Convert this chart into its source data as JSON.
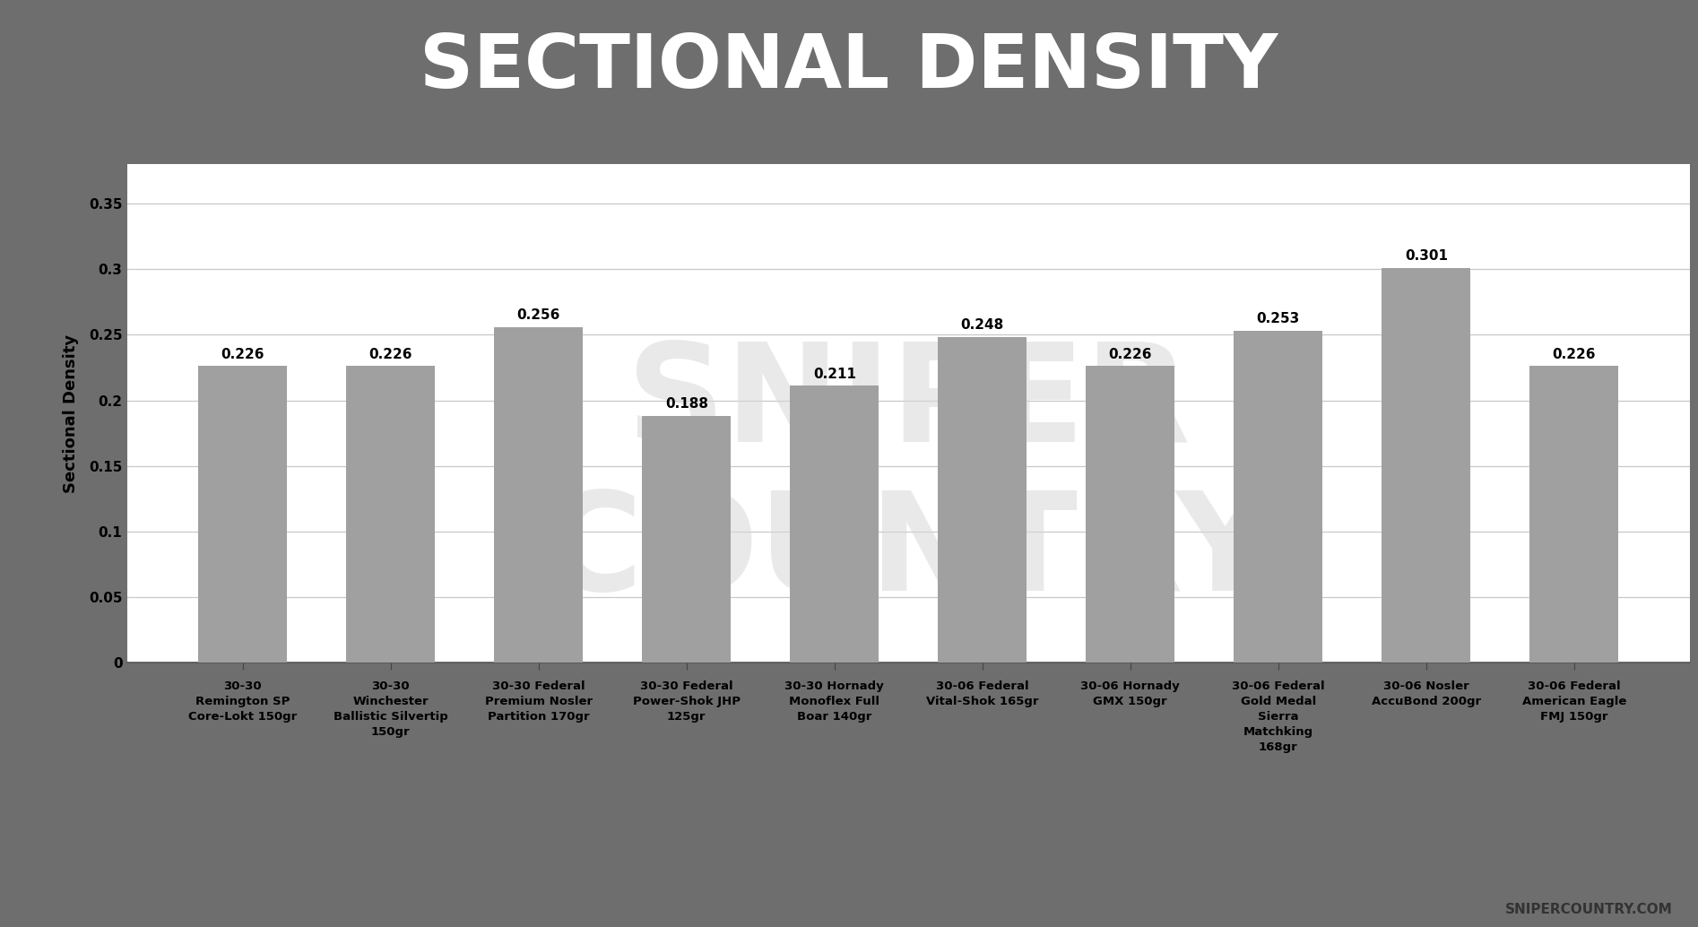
{
  "title": "SECTIONAL DENSITY",
  "ylabel": "Sectional Density",
  "categories": [
    "30-30\nRemington SP\nCore-Lokt 150gr",
    "30-30\nWinchester\nBallistic Silvertip\n150gr",
    "30-30 Federal\nPremium Nosler\nPartition 170gr",
    "30-30 Federal\nPower-Shok JHP\n125gr",
    "30-30 Hornady\nMonoflex Full\nBoar 140gr",
    "30-06 Federal\nVital-Shok 165gr",
    "30-06 Hornady\nGMX 150gr",
    "30-06 Federal\nGold Medal\nSierra\nMatchking\n168gr",
    "30-06 Nosler\nAccuBond 200gr",
    "30-06 Federal\nAmerican Eagle\nFMJ 150gr"
  ],
  "values": [
    0.226,
    0.226,
    0.256,
    0.188,
    0.211,
    0.248,
    0.226,
    0.253,
    0.301,
    0.226
  ],
  "bar_color": "#a0a0a0",
  "bar_edge_color": "#a0a0a0",
  "background_chart": "#ffffff",
  "background_title": "#6e6e6e",
  "accent_color": "#e05f57",
  "watermark_color": "#d8d8d8",
  "grid_color": "#c8c8c8",
  "ylim": [
    0,
    0.38
  ],
  "yticks": [
    0,
    0.05,
    0.1,
    0.15,
    0.2,
    0.25,
    0.3,
    0.35
  ],
  "value_label_fontsize": 11,
  "ylabel_fontsize": 13,
  "xtick_fontsize": 9.5,
  "ytick_fontsize": 11,
  "title_fontsize": 60,
  "watermark_text1": "SNIPER",
  "watermark_text2": "COUNTRY",
  "credit_text": "SNIPERCOUNTRY.COM"
}
